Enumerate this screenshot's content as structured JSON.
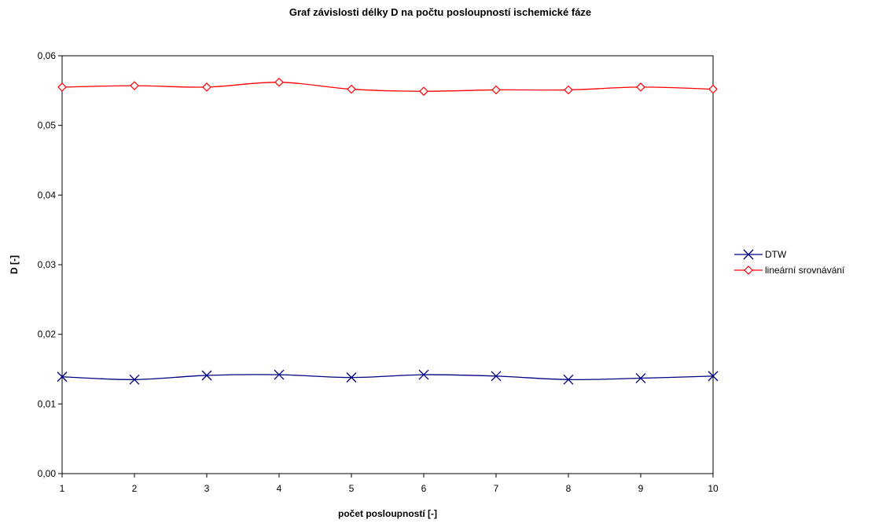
{
  "chart_data": {
    "type": "line",
    "title": "Graf závislosti délky D na počtu posloupností ischemické fáze",
    "xlabel": "počet posloupností [-]",
    "ylabel": "D [-]",
    "x": [
      1,
      2,
      3,
      4,
      5,
      6,
      7,
      8,
      9,
      10
    ],
    "x_tick_labels": [
      "1",
      "2",
      "3",
      "4",
      "5",
      "6",
      "7",
      "8",
      "9",
      "10"
    ],
    "ylim": [
      0,
      0.06
    ],
    "y_tick_labels": [
      "0,00",
      "0,01",
      "0,02",
      "0,03",
      "0,04",
      "0,05",
      "0,06"
    ],
    "y_ticks": [
      0,
      0.01,
      0.02,
      0.03,
      0.04,
      0.05,
      0.06
    ],
    "grid": false,
    "legend_position": "right",
    "series": [
      {
        "name": "DTW",
        "color": "#000080",
        "marker": "x",
        "values": [
          0.0139,
          0.0135,
          0.0141,
          0.0142,
          0.0138,
          0.0142,
          0.014,
          0.0135,
          0.0137,
          0.014
        ]
      },
      {
        "name": "lineární srovnávání",
        "color": "#ff0000",
        "marker": "diamond",
        "values": [
          0.0555,
          0.0557,
          0.0555,
          0.0562,
          0.0552,
          0.0549,
          0.0551,
          0.0551,
          0.0555,
          0.0552
        ]
      }
    ]
  }
}
